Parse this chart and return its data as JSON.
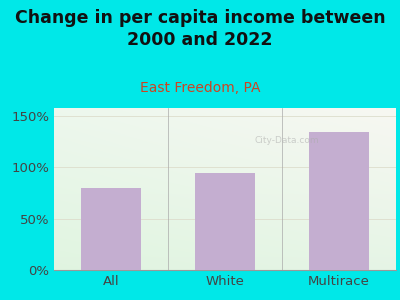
{
  "categories": [
    "All",
    "White",
    "Multirace"
  ],
  "values": [
    80,
    95,
    135
  ],
  "bar_color": "#c4aed0",
  "title": "Change in per capita income between\n2000 and 2022",
  "subtitle": "East Freedom, PA",
  "subtitle_color": "#cc4422",
  "title_color": "#111111",
  "figure_bg": "#00e8e8",
  "ylabel_ticks": [
    0,
    50,
    100,
    150
  ],
  "ylim": [
    0,
    158
  ],
  "watermark": "City-Data.com",
  "title_fontsize": 12.5,
  "subtitle_fontsize": 10,
  "tick_fontsize": 9.5,
  "bar_width": 0.52
}
